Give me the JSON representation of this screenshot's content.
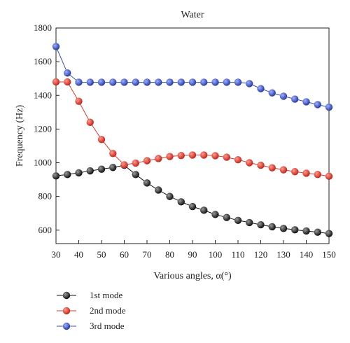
{
  "chart_data": {
    "type": "line",
    "title": "Water",
    "xlabel": "Various angles, α(°)",
    "ylabel": "Frequency (Hz)",
    "xlim": [
      30,
      150
    ],
    "ylim": [
      520,
      1800
    ],
    "xticks": [
      "30",
      "40",
      "50",
      "60",
      "70",
      "80",
      "90",
      "100",
      "110",
      "120",
      "130",
      "140",
      "150"
    ],
    "yticks": [
      "600",
      "800",
      "1000",
      "1200",
      "1400",
      "1600",
      "1800"
    ],
    "x": [
      30,
      35,
      40,
      45,
      50,
      55,
      60,
      65,
      70,
      75,
      80,
      85,
      90,
      95,
      100,
      105,
      110,
      115,
      120,
      125,
      130,
      135,
      140,
      145,
      150
    ],
    "grid": false,
    "legend_position": "bottom-left, below plot",
    "series": [
      {
        "name": "1st mode",
        "color": "#111111",
        "values": [
          922,
          930,
          940,
          952,
          962,
          972,
          985,
          930,
          880,
          838,
          800,
          768,
          740,
          718,
          693,
          675,
          658,
          645,
          632,
          620,
          610,
          602,
          595,
          588,
          580
        ]
      },
      {
        "name": "2nd mode",
        "color": "#d03a2f",
        "values": [
          1480,
          1480,
          1365,
          1240,
          1138,
          1055,
          988,
          998,
          1012,
          1025,
          1037,
          1043,
          1046,
          1046,
          1042,
          1033,
          1018,
          1000,
          985,
          970,
          958,
          947,
          938,
          930,
          920
        ]
      },
      {
        "name": "3rd mode",
        "color": "#3a4fb0",
        "values": [
          1690,
          1533,
          1478,
          1478,
          1478,
          1478,
          1478,
          1478,
          1478,
          1478,
          1478,
          1478,
          1478,
          1478,
          1478,
          1478,
          1478,
          1470,
          1440,
          1415,
          1395,
          1378,
          1362,
          1345,
          1330
        ]
      }
    ]
  }
}
